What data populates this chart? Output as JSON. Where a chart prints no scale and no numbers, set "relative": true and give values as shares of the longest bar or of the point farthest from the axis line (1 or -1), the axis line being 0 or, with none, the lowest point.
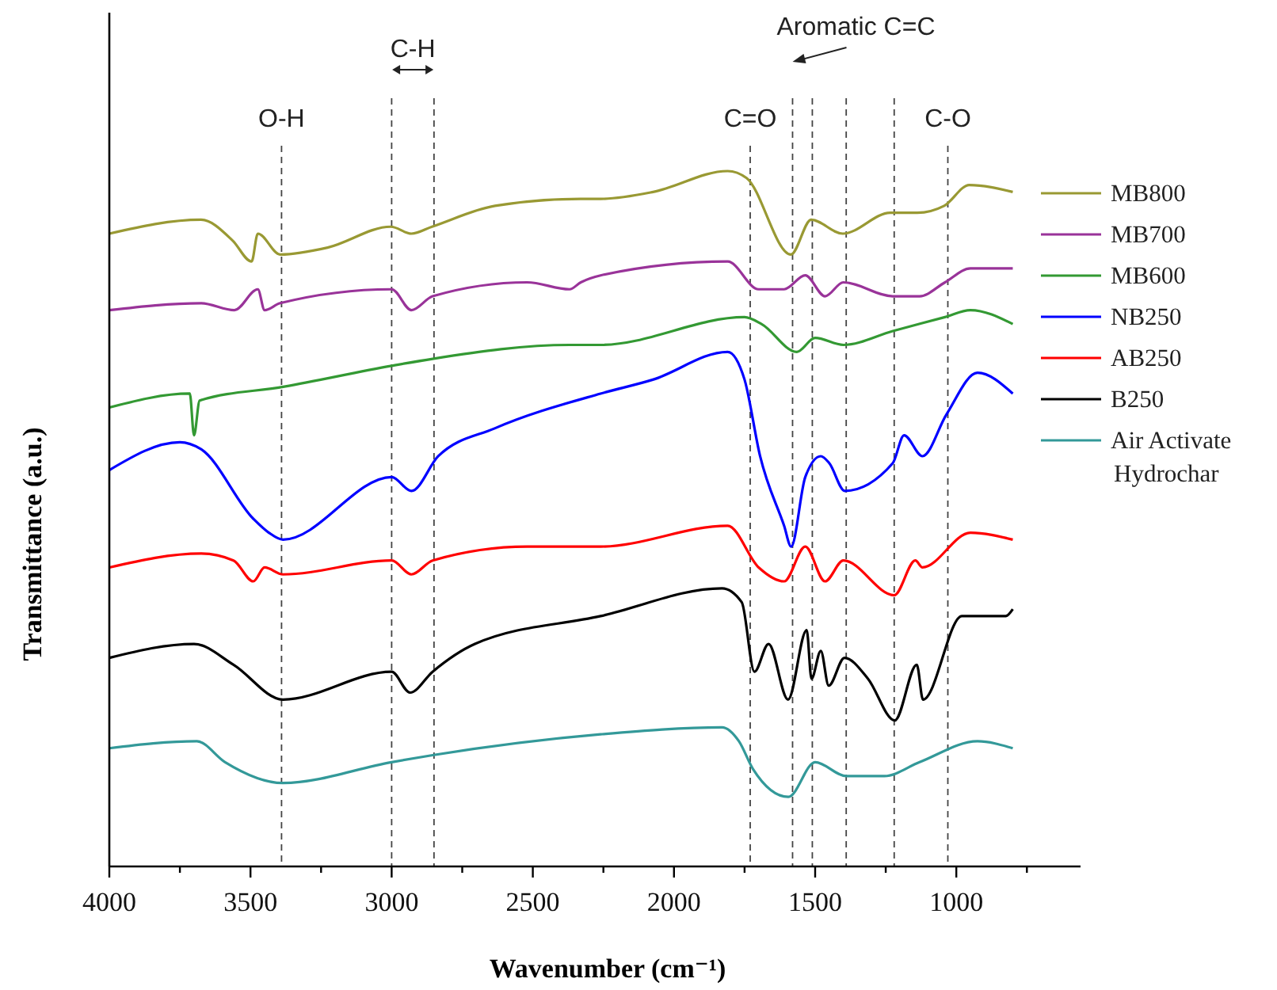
{
  "chart_data": {
    "type": "line",
    "relative": true,
    "xlabel": "Wavenumber (cm⁻¹)",
    "ylabel": "Transmittance (a.u.)",
    "xlim": [
      4000,
      560
    ],
    "xticks": [
      4000,
      {
        "value": 3750,
        "label": null
      },
      3500,
      {
        "value": 3250,
        "label": null
      },
      3000,
      {
        "value": 2750,
        "label": null
      },
      2500,
      {
        "value": 2250,
        "label": null
      },
      2000,
      {
        "value": 1750,
        "label": null
      },
      1500,
      {
        "value": 1250,
        "label": null
      },
      1000,
      {
        "value": 750,
        "label": null
      }
    ],
    "legend": "right",
    "series": [
      {
        "name": "MB800",
        "color": "#999933",
        "x": [
          4000,
          3675,
          3563,
          3496,
          3474,
          3395,
          3227,
          3003,
          2930,
          2857,
          2634,
          2331,
          2260,
          2074,
          1810,
          1743,
          1586,
          1514,
          1402,
          1234,
          1138,
          1043,
          954,
          800
        ],
        "values": [
          0.91,
          0.93,
          0.9,
          0.87,
          0.91,
          0.88,
          0.89,
          0.92,
          0.91,
          0.92,
          0.95,
          0.96,
          0.96,
          0.97,
          1.0,
          0.99,
          0.88,
          0.93,
          0.91,
          0.94,
          0.94,
          0.95,
          0.98,
          0.97
        ]
      },
      {
        "name": "MB700",
        "color": "#993399",
        "x": [
          4000,
          3675,
          3557,
          3474,
          3450,
          3395,
          3000,
          2930,
          2855,
          2520,
          2370,
          2330,
          2260,
          1810,
          1700,
          1610,
          1535,
          1465,
          1400,
          1225,
          1130,
          1040,
          950,
          800
        ],
        "values": [
          0.8,
          0.81,
          0.8,
          0.83,
          0.8,
          0.81,
          0.83,
          0.8,
          0.82,
          0.84,
          0.83,
          0.84,
          0.85,
          0.87,
          0.83,
          0.83,
          0.85,
          0.82,
          0.84,
          0.82,
          0.82,
          0.84,
          0.86,
          0.86
        ]
      },
      {
        "name": "MB600",
        "color": "#339933",
        "x": [
          4000,
          3715,
          3700,
          3680,
          3380,
          3000,
          2855,
          2370,
          2260,
          1750,
          1690,
          1565,
          1500,
          1400,
          1225,
          1040,
          950,
          800
        ],
        "values": [
          0.66,
          0.68,
          0.62,
          0.67,
          0.69,
          0.72,
          0.73,
          0.75,
          0.75,
          0.79,
          0.78,
          0.74,
          0.76,
          0.75,
          0.77,
          0.79,
          0.8,
          0.78
        ]
      },
      {
        "name": "NB250",
        "color": "#0000ff",
        "x": [
          4000,
          3750,
          3675,
          3490,
          3435,
          3385,
          3000,
          2930,
          2835,
          2635,
          2260,
          2075,
          1810,
          1750,
          1695,
          1610,
          1585,
          1535,
          1480,
          1450,
          1395,
          1225,
          1185,
          1120,
          1035,
          925,
          800
        ],
        "values": [
          0.57,
          0.61,
          0.6,
          0.5,
          0.48,
          0.47,
          0.56,
          0.54,
          0.59,
          0.63,
          0.68,
          0.7,
          0.74,
          0.7,
          0.59,
          0.49,
          0.46,
          0.56,
          0.59,
          0.58,
          0.54,
          0.58,
          0.62,
          0.59,
          0.65,
          0.71,
          0.68
        ]
      },
      {
        "name": "AB250",
        "color": "#ff0000",
        "x": [
          4000,
          3675,
          3560,
          3490,
          3450,
          3385,
          3000,
          2930,
          2855,
          2520,
          2260,
          1810,
          1700,
          1610,
          1535,
          1465,
          1400,
          1220,
          1145,
          1120,
          950,
          800
        ],
        "values": [
          0.43,
          0.45,
          0.44,
          0.41,
          0.43,
          0.42,
          0.44,
          0.42,
          0.44,
          0.46,
          0.46,
          0.49,
          0.43,
          0.41,
          0.46,
          0.41,
          0.44,
          0.39,
          0.44,
          0.43,
          0.48,
          0.47
        ]
      },
      {
        "name": "B250",
        "color": "#000000",
        "x": [
          4000,
          3700,
          3560,
          3385,
          3000,
          2935,
          2855,
          2705,
          2260,
          1830,
          1760,
          1715,
          1665,
          1596,
          1530,
          1513,
          1480,
          1452,
          1396,
          1313,
          1218,
          1140,
          1118,
          980,
          825,
          800
        ],
        "values": [
          0.3,
          0.32,
          0.29,
          0.24,
          0.28,
          0.25,
          0.28,
          0.32,
          0.36,
          0.4,
          0.38,
          0.28,
          0.32,
          0.24,
          0.34,
          0.27,
          0.31,
          0.26,
          0.3,
          0.27,
          0.21,
          0.29,
          0.24,
          0.36,
          0.36,
          0.37
        ]
      },
      {
        "name": "Air Activate Hydrochar",
        "color": "#339999",
        "x": [
          4000,
          3690,
          3590,
          3385,
          3000,
          2855,
          2260,
          1830,
          1770,
          1720,
          1595,
          1500,
          1390,
          1255,
          1130,
          925,
          800
        ],
        "values": [
          0.17,
          0.18,
          0.15,
          0.12,
          0.15,
          0.16,
          0.19,
          0.2,
          0.18,
          0.14,
          0.1,
          0.15,
          0.13,
          0.13,
          0.15,
          0.18,
          0.17
        ]
      }
    ],
    "ref_lines": [
      {
        "axis": "x",
        "value": 3390,
        "label": "O-H",
        "line_style": "dashed"
      },
      {
        "axis": "x",
        "value": 3000,
        "label": null,
        "line_style": "dashed"
      },
      {
        "axis": "x",
        "value": 2850,
        "label": null,
        "line_style": "dashed"
      },
      {
        "axis": "x",
        "value": 1730,
        "label": "C=O",
        "line_style": "dashed"
      },
      {
        "axis": "x",
        "value": 1580,
        "label": null,
        "line_style": "dashed"
      },
      {
        "axis": "x",
        "value": 1510,
        "label": null,
        "line_style": "dashed"
      },
      {
        "axis": "x",
        "value": 1390,
        "label": null,
        "line_style": "dashed"
      },
      {
        "axis": "x",
        "value": 1220,
        "label": null,
        "line_style": "dashed"
      },
      {
        "axis": "x",
        "value": 1030,
        "label": "C-O",
        "line_style": "dashed"
      }
    ],
    "annotations": [
      "C-H",
      "Aromatic C=C"
    ]
  }
}
